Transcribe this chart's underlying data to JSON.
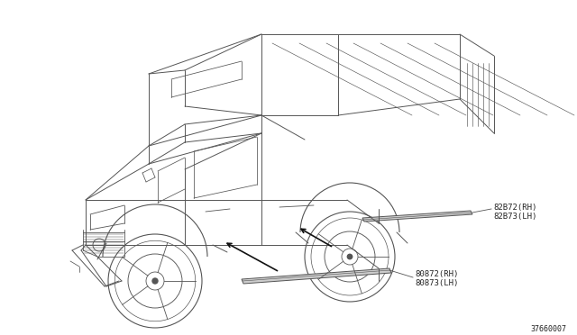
{
  "background_color": "#ffffff",
  "fig_width": 6.4,
  "fig_height": 3.72,
  "dpi": 100,
  "part_labels": {
    "upper_molding": [
      "82B72(RH)",
      "82B73(LH)"
    ],
    "lower_molding": [
      "80872(RH)",
      "80873(LH)"
    ]
  },
  "diagram_number": "37660007",
  "line_color": "#555555",
  "arrow_color": "#111111",
  "text_color": "#222222",
  "label_fontsize": 6.5,
  "diagram_num_fontsize": 6.0
}
